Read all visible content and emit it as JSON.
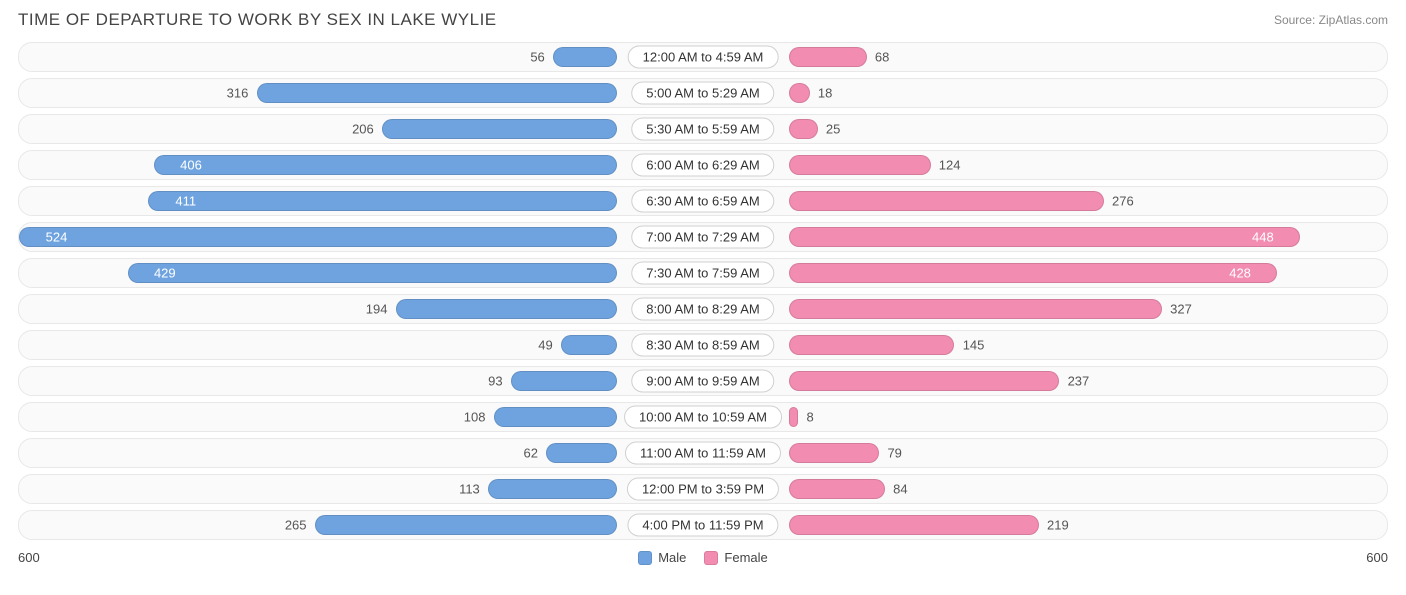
{
  "title": "TIME OF DEPARTURE TO WORK BY SEX IN LAKE WYLIE",
  "source_label": "Source: ZipAtlas.com",
  "chart": {
    "type": "diverging-bar",
    "axis_max": 600,
    "axis_label_left": "600",
    "axis_label_right": "600",
    "inside_label_threshold": 400,
    "row_background": "#fafafa",
    "row_border": "#e8e8e8",
    "center_label_bg": "#ffffff",
    "center_label_border": "#d0d0d0",
    "label_fontsize": 13,
    "title_fontsize": 17,
    "series": [
      {
        "key": "male",
        "label": "Male",
        "color": "#6fa3e0"
      },
      {
        "key": "female",
        "label": "Female",
        "color": "#f28cb1"
      }
    ],
    "rows": [
      {
        "category": "12:00 AM to 4:59 AM",
        "male": 56,
        "female": 68
      },
      {
        "category": "5:00 AM to 5:29 AM",
        "male": 316,
        "female": 18
      },
      {
        "category": "5:30 AM to 5:59 AM",
        "male": 206,
        "female": 25
      },
      {
        "category": "6:00 AM to 6:29 AM",
        "male": 406,
        "female": 124
      },
      {
        "category": "6:30 AM to 6:59 AM",
        "male": 411,
        "female": 276
      },
      {
        "category": "7:00 AM to 7:29 AM",
        "male": 524,
        "female": 448
      },
      {
        "category": "7:30 AM to 7:59 AM",
        "male": 429,
        "female": 428
      },
      {
        "category": "8:00 AM to 8:29 AM",
        "male": 194,
        "female": 327
      },
      {
        "category": "8:30 AM to 8:59 AM",
        "male": 49,
        "female": 145
      },
      {
        "category": "9:00 AM to 9:59 AM",
        "male": 93,
        "female": 237
      },
      {
        "category": "10:00 AM to 10:59 AM",
        "male": 108,
        "female": 8
      },
      {
        "category": "11:00 AM to 11:59 AM",
        "male": 62,
        "female": 79
      },
      {
        "category": "12:00 PM to 3:59 PM",
        "male": 113,
        "female": 84
      },
      {
        "category": "4:00 PM to 11:59 PM",
        "male": 265,
        "female": 219
      }
    ]
  }
}
